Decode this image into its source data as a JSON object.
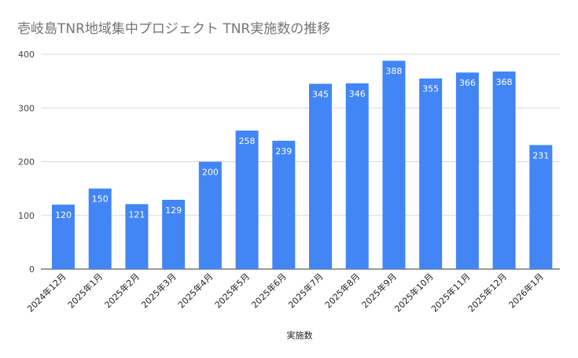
{
  "chart_data": {
    "type": "bar",
    "title": "壱岐島TNR地域集中プロジェクト  TNR実施数の推移",
    "xlabel": "実施数",
    "ylabel": "",
    "ylim": [
      0,
      400
    ],
    "yticks": [
      0,
      100,
      200,
      300,
      400
    ],
    "grid": true,
    "legend": "none",
    "bar_color": "#4285f4",
    "categories": [
      "2024年12月",
      "2025年1月",
      "2025年2月",
      "2025年3月",
      "2025年4月",
      "2025年5月",
      "2025年6月",
      "2025年7月",
      "2025年8月",
      "2025年9月",
      "2025年10月",
      "2025年11月",
      "2025年12月",
      "2026年1月"
    ],
    "values": [
      120,
      150,
      121,
      129,
      200,
      258,
      239,
      345,
      346,
      388,
      355,
      366,
      368,
      231
    ]
  }
}
